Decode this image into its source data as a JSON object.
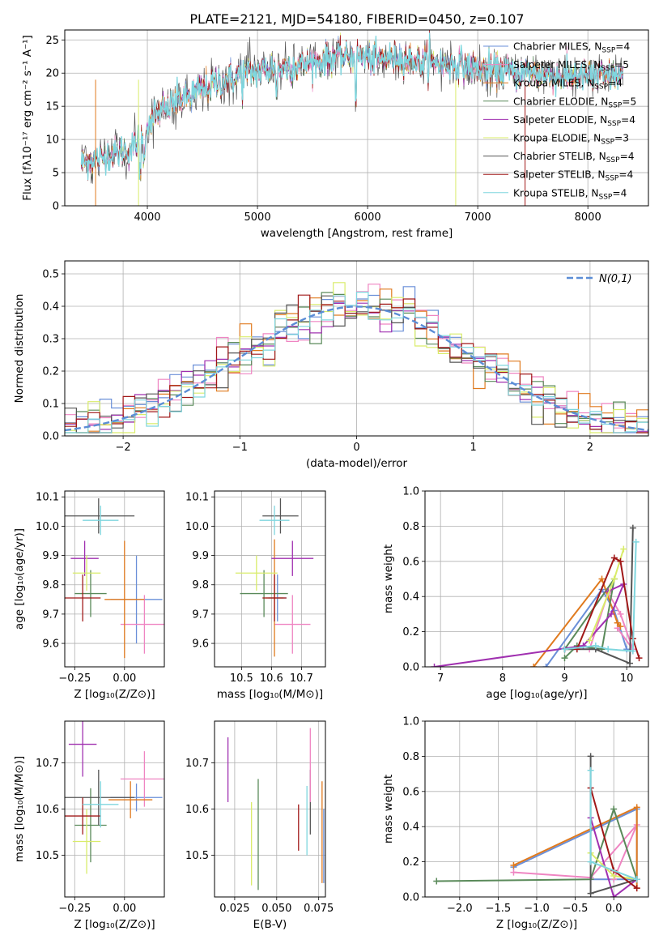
{
  "figure": {
    "title": "PLATE=2121, MJD=54180, FIBERID=0450, z=0.107",
    "legend_entries": [
      {
        "label": "Chabrier MILES, N",
        "sub": "SSP",
        "suffix": "=4",
        "color": "#6a8fd8"
      },
      {
        "label": "Salpeter MILES, N",
        "sub": "SSP",
        "suffix": "=5",
        "color": "#ef85c2"
      },
      {
        "label": "Kroupa MILES, N",
        "sub": "SSP",
        "suffix": "=4",
        "color": "#e07a1e"
      },
      {
        "label": "Chabrier ELODIE, N",
        "sub": "SSP",
        "suffix": "=5",
        "color": "#5a8a5a"
      },
      {
        "label": "Salpeter ELODIE, N",
        "sub": "SSP",
        "suffix": "=4",
        "color": "#a030b0"
      },
      {
        "label": "Kroupa ELODIE, N",
        "sub": "SSP",
        "suffix": "=3",
        "color": "#d9ec6a"
      },
      {
        "label": "Chabrier STELIB, N",
        "sub": "SSP",
        "suffix": "=4",
        "color": "#555555"
      },
      {
        "label": "Salpeter STELIB, N",
        "sub": "SSP",
        "suffix": "=4",
        "color": "#a01818"
      },
      {
        "label": "Kroupa STELIB, N",
        "sub": "SSP",
        "suffix": "=4",
        "color": "#7fd6de"
      }
    ]
  },
  "chart_data": [
    {
      "id": "spectrum",
      "type": "line",
      "xlabel": "wavelength [Angstrom, rest frame]",
      "ylabel": "Flux [fλ10⁻¹⁷ erg cm⁻² s⁻¹ A⁻¹]",
      "xlim": [
        3250,
        8550
      ],
      "ylim": [
        0,
        26.5
      ],
      "xticks": [
        4000,
        5000,
        6000,
        7000,
        8000
      ],
      "yticks": [
        0,
        5,
        10,
        15,
        20,
        25
      ],
      "continuum": [
        [
          3400,
          6.5
        ],
        [
          3550,
          7.0
        ],
        [
          3700,
          8.0
        ],
        [
          3850,
          8.5
        ],
        [
          3950,
          10.5
        ],
        [
          4050,
          13.5
        ],
        [
          4150,
          14.5
        ],
        [
          4300,
          16.0
        ],
        [
          4500,
          17.5
        ],
        [
          4700,
          19.0
        ],
        [
          4900,
          20.0
        ],
        [
          5100,
          20.5
        ],
        [
          5300,
          21.0
        ],
        [
          5500,
          21.5
        ],
        [
          5700,
          22.5
        ],
        [
          5900,
          22.5
        ],
        [
          6100,
          22.0
        ],
        [
          6300,
          22.5
        ],
        [
          6500,
          21.5
        ],
        [
          6700,
          21.5
        ],
        [
          6900,
          21.0
        ],
        [
          7100,
          20.5
        ],
        [
          7300,
          20.0
        ],
        [
          7500,
          20.0
        ],
        [
          7700,
          19.5
        ],
        [
          7900,
          19.5
        ],
        [
          8100,
          19.5
        ],
        [
          8300,
          19.5
        ]
      ],
      "series_order": [
        "Chabrier MILES",
        "Salpeter MILES",
        "Kroupa MILES",
        "Chabrier ELODIE",
        "Salpeter ELODIE",
        "Kroupa ELODIE",
        "Chabrier STELIB",
        "Salpeter STELIB",
        "Kroupa STELIB"
      ]
    },
    {
      "id": "residual_hist",
      "type": "bar",
      "xlabel": "(data-model)/error",
      "ylabel": "Normed distribution",
      "xlim": [
        -2.5,
        2.5
      ],
      "ylim": [
        0,
        0.54
      ],
      "xticks": [
        -2,
        -1,
        0,
        1,
        2
      ],
      "yticks": [
        0.0,
        0.1,
        0.2,
        0.3,
        0.4,
        0.5
      ],
      "bin_width": 0.1,
      "reference_curve": {
        "label": "N(0,1)",
        "mu": 0,
        "sigma": 1,
        "color": "#5b8dd6"
      }
    },
    {
      "id": "age_vs_Z",
      "type": "scatter",
      "xlabel": "Z [log₁₀(Z/Z⊙)]",
      "ylabel": "age  [log₁₀(age/yr)]",
      "xlim": [
        -0.3,
        0.2
      ],
      "ylim": [
        9.52,
        10.12
      ],
      "xticks": [
        -0.25,
        0.0
      ],
      "yticks": [
        9.6,
        9.7,
        9.8,
        9.9,
        10.0,
        10.1
      ],
      "points": [
        {
          "x": 0.06,
          "xe": 0.13,
          "y": 9.75,
          "ye": 0.15,
          "c": "#6a8fd8"
        },
        {
          "x": 0.1,
          "xe": 0.12,
          "y": 9.665,
          "ye": 0.1,
          "c": "#ef85c2"
        },
        {
          "x": 0.0,
          "xe": 0.1,
          "y": 9.75,
          "ye": 0.2,
          "c": "#e07a1e"
        },
        {
          "x": -0.17,
          "xe": 0.08,
          "y": 9.77,
          "ye": 0.08,
          "c": "#5a8a5a"
        },
        {
          "x": -0.2,
          "xe": 0.07,
          "y": 9.89,
          "ye": 0.06,
          "c": "#a030b0"
        },
        {
          "x": -0.19,
          "xe": 0.07,
          "y": 9.84,
          "ye": 0.06,
          "c": "#d9ec6a"
        },
        {
          "x": -0.13,
          "xe": 0.18,
          "y": 10.035,
          "ye": 0.06,
          "c": "#555555"
        },
        {
          "x": -0.21,
          "xe": 0.09,
          "y": 9.755,
          "ye": 0.08,
          "c": "#a01818"
        },
        {
          "x": -0.12,
          "xe": 0.09,
          "y": 10.02,
          "ye": 0.05,
          "c": "#7fd6de"
        }
      ]
    },
    {
      "id": "age_vs_mass",
      "type": "scatter",
      "xlabel": "mass [log₁₀(M/M⊙)]",
      "ylabel": "",
      "xlim": [
        10.41,
        10.78
      ],
      "ylim": [
        9.52,
        10.12
      ],
      "xticks": [
        10.5,
        10.6,
        10.7
      ],
      "yticks": [
        9.6,
        9.7,
        9.8,
        9.9,
        10.0,
        10.1
      ],
      "points": [
        {
          "x": 10.62,
          "xe": 0.03,
          "y": 9.755,
          "ye": 0.08,
          "c": "#6a8fd8"
        },
        {
          "x": 10.67,
          "xe": 0.06,
          "y": 9.665,
          "ye": 0.1,
          "c": "#ef85c2"
        },
        {
          "x": 10.61,
          "xe": 0.03,
          "y": 9.755,
          "ye": 0.2,
          "c": "#e07a1e"
        },
        {
          "x": 10.575,
          "xe": 0.08,
          "y": 9.77,
          "ye": 0.08,
          "c": "#5a8a5a"
        },
        {
          "x": 10.67,
          "xe": 0.07,
          "y": 9.89,
          "ye": 0.06,
          "c": "#a030b0"
        },
        {
          "x": 10.55,
          "xe": 0.07,
          "y": 9.84,
          "ye": 0.06,
          "c": "#d9ec6a"
        },
        {
          "x": 10.63,
          "xe": 0.06,
          "y": 10.035,
          "ye": 0.06,
          "c": "#555555"
        },
        {
          "x": 10.61,
          "xe": 0.04,
          "y": 9.755,
          "ye": 0.08,
          "c": "#a01818"
        },
        {
          "x": 10.61,
          "xe": 0.05,
          "y": 10.02,
          "ye": 0.05,
          "c": "#7fd6de"
        }
      ]
    },
    {
      "id": "mass_weight_vs_age",
      "type": "line",
      "xlabel": "age  [log₁₀(age/yr)]",
      "ylabel": "mass weight",
      "xlim": [
        6.75,
        10.35
      ],
      "ylim": [
        0,
        1.0
      ],
      "xticks": [
        7,
        8,
        9,
        10
      ],
      "yticks": [
        0.0,
        0.2,
        0.4,
        0.6,
        0.8,
        1.0
      ],
      "series": [
        {
          "c": "#6a8fd8",
          "pts": [
            [
              8.7,
              0.0
            ],
            [
              9.6,
              0.44
            ],
            [
              9.8,
              0.32
            ],
            [
              10.0,
              0.1
            ]
          ]
        },
        {
          "c": "#ef85c2",
          "pts": [
            [
              9.4,
              0.1
            ],
            [
              9.7,
              0.42
            ],
            [
              9.9,
              0.3
            ],
            [
              10.1,
              0.1
            ],
            [
              9.85,
              0.22
            ]
          ]
        },
        {
          "c": "#e07a1e",
          "pts": [
            [
              8.5,
              0.0
            ],
            [
              9.6,
              0.5
            ],
            [
              9.85,
              0.25
            ],
            [
              9.9,
              0.23
            ]
          ]
        },
        {
          "c": "#5a8a5a",
          "pts": [
            [
              9.0,
              0.05
            ],
            [
              9.2,
              0.12
            ],
            [
              9.6,
              0.1
            ],
            [
              9.8,
              0.5
            ],
            [
              9.0,
              0.1
            ]
          ]
        },
        {
          "c": "#a030b0",
          "pts": [
            [
              6.9,
              0.0
            ],
            [
              9.3,
              0.12
            ],
            [
              9.75,
              0.3
            ],
            [
              9.95,
              0.47
            ],
            [
              9.7,
              0.43
            ]
          ]
        },
        {
          "c": "#d9ec6a",
          "pts": [
            [
              9.4,
              0.15
            ],
            [
              9.8,
              0.5
            ],
            [
              9.95,
              0.67
            ]
          ]
        },
        {
          "c": "#555555",
          "pts": [
            [
              9.0,
              0.1
            ],
            [
              9.5,
              0.1
            ],
            [
              10.05,
              0.02
            ],
            [
              10.1,
              0.79
            ]
          ]
        },
        {
          "c": "#a01818",
          "pts": [
            [
              9.2,
              0.1
            ],
            [
              9.8,
              0.62
            ],
            [
              9.9,
              0.6
            ],
            [
              10.1,
              0.16
            ],
            [
              10.2,
              0.05
            ]
          ]
        },
        {
          "c": "#7fd6de",
          "pts": [
            [
              9.0,
              0.1
            ],
            [
              9.5,
              0.12
            ],
            [
              9.7,
              0.1
            ],
            [
              10.1,
              0.09
            ],
            [
              10.15,
              0.71
            ]
          ]
        }
      ]
    },
    {
      "id": "mass_vs_Z",
      "type": "scatter",
      "xlabel": "Z [log₁₀(Z/Z⊙)]",
      "ylabel": "mass [log₁₀(M/M⊙)]",
      "xlim": [
        -0.3,
        0.2
      ],
      "ylim": [
        10.41,
        10.79
      ],
      "xticks": [
        -0.25,
        0.0
      ],
      "yticks": [
        10.5,
        10.6,
        10.7
      ],
      "points": [
        {
          "x": 0.06,
          "xe": 0.13,
          "y": 10.625,
          "ye": 0.03,
          "c": "#6a8fd8"
        },
        {
          "x": 0.1,
          "xe": 0.12,
          "y": 10.665,
          "ye": 0.06,
          "c": "#ef85c2"
        },
        {
          "x": 0.03,
          "xe": 0.11,
          "y": 10.62,
          "ye": 0.04,
          "c": "#e07a1e"
        },
        {
          "x": -0.17,
          "xe": 0.08,
          "y": 10.565,
          "ye": 0.08,
          "c": "#5a8a5a"
        },
        {
          "x": -0.21,
          "xe": 0.07,
          "y": 10.74,
          "ye": 0.07,
          "c": "#a030b0"
        },
        {
          "x": -0.19,
          "xe": 0.07,
          "y": 10.53,
          "ye": 0.07,
          "c": "#d9ec6a"
        },
        {
          "x": -0.13,
          "xe": 0.18,
          "y": 10.625,
          "ye": 0.06,
          "c": "#555555"
        },
        {
          "x": -0.21,
          "xe": 0.09,
          "y": 10.585,
          "ye": 0.04,
          "c": "#a01818"
        },
        {
          "x": -0.12,
          "xe": 0.09,
          "y": 10.61,
          "ye": 0.05,
          "c": "#7fd6de"
        }
      ]
    },
    {
      "id": "mass_vs_EBV",
      "type": "scatter",
      "xlabel": "E(B-V)",
      "ylabel": "",
      "xlim": [
        0.013,
        0.079
      ],
      "ylim": [
        10.41,
        10.79
      ],
      "xticks": [
        0.025,
        0.05,
        0.075
      ],
      "yticks": [
        10.5,
        10.6,
        10.7
      ],
      "points": [
        {
          "x": 0.068,
          "ye": 0.075,
          "y": 10.575,
          "c": "#7fd6de"
        },
        {
          "x": 0.07,
          "ye": 0.07,
          "y": 10.615,
          "c": "#555555"
        },
        {
          "x": 0.021,
          "ye": 0.07,
          "y": 10.685,
          "c": "#a030b0"
        },
        {
          "x": 0.035,
          "ye": 0.09,
          "y": 10.525,
          "c": "#d9ec6a"
        },
        {
          "x": 0.039,
          "ye": 0.12,
          "y": 10.545,
          "c": "#5a8a5a"
        },
        {
          "x": 0.063,
          "ye": 0.05,
          "y": 10.56,
          "c": "#a01818"
        },
        {
          "x": 0.07,
          "ye": 0.08,
          "y": 10.695,
          "c": "#ef85c2"
        },
        {
          "x": 0.077,
          "ye": 0.11,
          "y": 10.55,
          "c": "#e07a1e"
        },
        {
          "x": 0.078,
          "ye": 0.08,
          "y": 10.52,
          "c": "#6a8fd8"
        }
      ]
    },
    {
      "id": "mass_weight_vs_Z",
      "type": "line",
      "xlabel": "Z [log₁₀(Z/Z⊙)]",
      "ylabel": "mass weight",
      "xlim": [
        -2.45,
        0.45
      ],
      "ylim": [
        0,
        1.0
      ],
      "xticks": [
        -2.0,
        -1.5,
        -1.0,
        -0.5,
        0.0
      ],
      "yticks": [
        0.0,
        0.2,
        0.4,
        0.6,
        0.8,
        1.0
      ],
      "series": [
        {
          "c": "#6a8fd8",
          "pts": [
            [
              -1.3,
              0.17
            ],
            [
              0.3,
              0.5
            ],
            [
              0.3,
              0.1
            ],
            [
              -0.3,
              0.1
            ]
          ]
        },
        {
          "c": "#ef85c2",
          "pts": [
            [
              -1.3,
              0.14
            ],
            [
              -0.3,
              0.11
            ],
            [
              0.3,
              0.41
            ],
            [
              0.0,
              0.1
            ]
          ]
        },
        {
          "c": "#e07a1e",
          "pts": [
            [
              -1.3,
              0.18
            ],
            [
              0.3,
              0.51
            ],
            [
              0.3,
              0.05
            ]
          ]
        },
        {
          "c": "#5a8a5a",
          "pts": [
            [
              -2.3,
              0.09
            ],
            [
              -0.3,
              0.1
            ],
            [
              0.0,
              0.5
            ],
            [
              0.3,
              0.1
            ]
          ]
        },
        {
          "c": "#a030b0",
          "pts": [
            [
              -0.3,
              0.45
            ],
            [
              0.0,
              0.0
            ],
            [
              0.3,
              0.1
            ]
          ]
        },
        {
          "c": "#d9ec6a",
          "pts": [
            [
              -0.3,
              0.25
            ],
            [
              0.0,
              0.12
            ],
            [
              0.3,
              0.1
            ]
          ]
        },
        {
          "c": "#555555",
          "pts": [
            [
              -0.3,
              0.8
            ],
            [
              -0.3,
              0.02
            ],
            [
              0.3,
              0.1
            ]
          ]
        },
        {
          "c": "#a01818",
          "pts": [
            [
              -0.3,
              0.62
            ],
            [
              0.0,
              0.15
            ],
            [
              0.3,
              0.05
            ]
          ]
        },
        {
          "c": "#7fd6de",
          "pts": [
            [
              -0.3,
              0.72
            ],
            [
              -0.3,
              0.2
            ],
            [
              0.3,
              0.1
            ]
          ]
        }
      ]
    }
  ]
}
